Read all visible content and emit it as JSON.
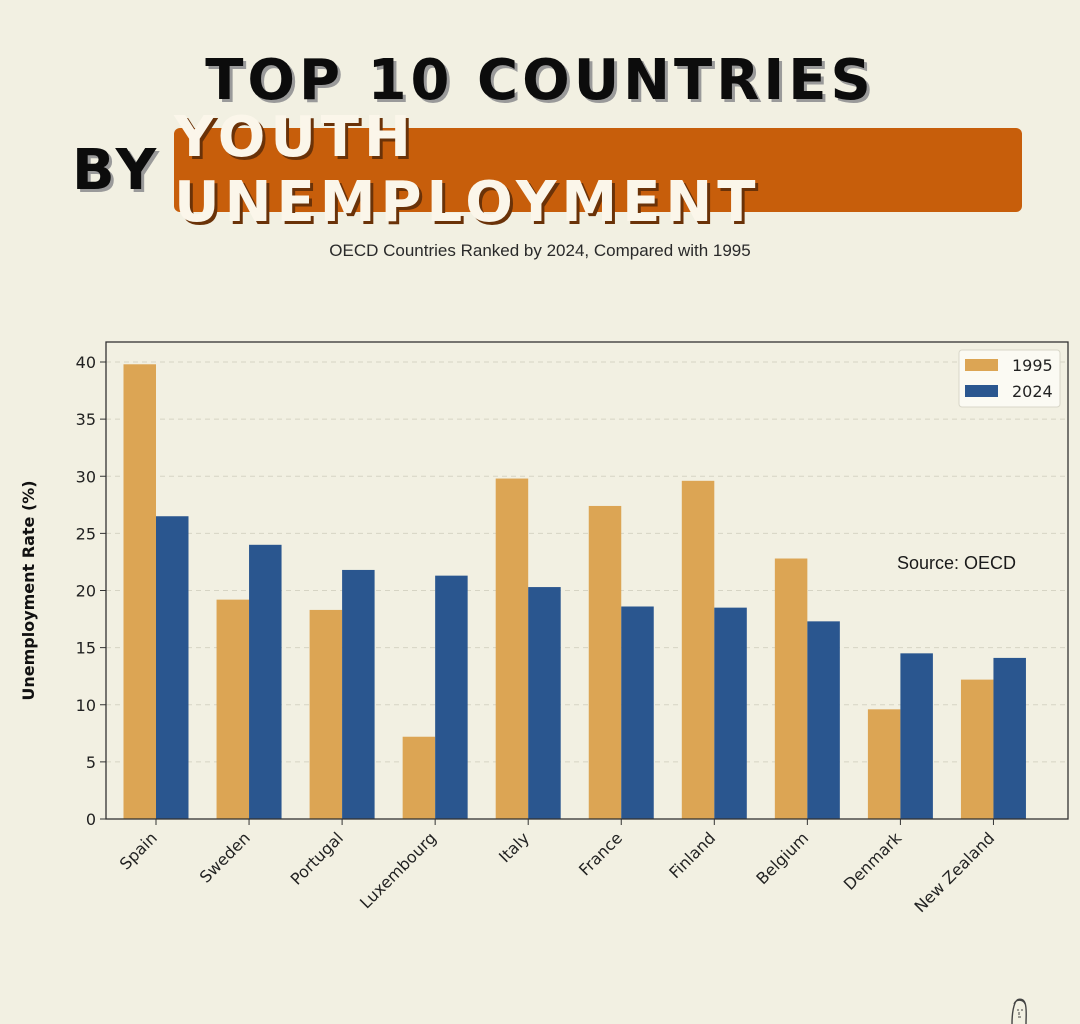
{
  "header": {
    "title_line1": "TOP 10 COUNTRIES",
    "title_by": "BY",
    "title_highlight": "YOUTH UNEMPLOYMENT",
    "subtitle": "OECD Countries Ranked by 2024, Compared with 1995"
  },
  "annotation": {
    "source": "Source: OECD"
  },
  "colors": {
    "background": "#f2f0e2",
    "highlight": "#c75e0b",
    "series_1995": "#dca554",
    "series_2024": "#2a568f"
  },
  "chart_data": {
    "type": "bar",
    "title": "Top 10 Countries by Youth Unemployment",
    "subtitle": "OECD Countries Ranked by 2024, Compared with 1995",
    "xlabel": "",
    "ylabel": "Unemployment Rate (%)",
    "ylim": [
      0,
      42
    ],
    "yticks": [
      0,
      5,
      10,
      15,
      20,
      25,
      30,
      35,
      40
    ],
    "grid": true,
    "legend_position": "upper right",
    "categories": [
      "Spain",
      "Sweden",
      "Portugal",
      "Luxembourg",
      "Italy",
      "France",
      "Finland",
      "Belgium",
      "Denmark",
      "New Zealand"
    ],
    "series": [
      {
        "name": "1995",
        "color": "#dca554",
        "values": [
          39.8,
          19.2,
          18.3,
          7.2,
          29.8,
          27.4,
          29.6,
          22.8,
          9.6,
          12.2
        ]
      },
      {
        "name": "2024",
        "color": "#2a568f",
        "values": [
          26.5,
          24.0,
          21.8,
          21.3,
          20.3,
          18.6,
          18.5,
          17.3,
          14.5,
          14.1
        ]
      }
    ],
    "annotations": [
      "Source: OECD"
    ]
  }
}
